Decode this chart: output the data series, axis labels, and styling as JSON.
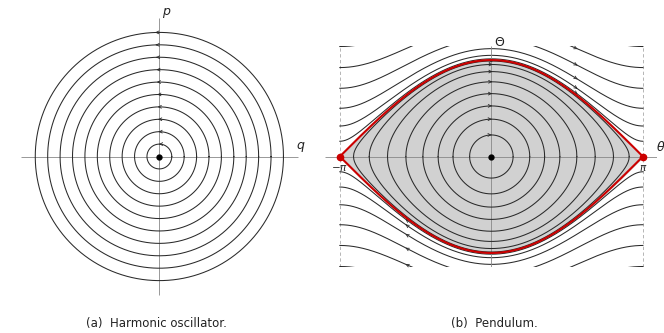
{
  "fig_width": 6.64,
  "fig_height": 3.33,
  "background": "#ffffff",
  "harmonic_radii": [
    0.13,
    0.26,
    0.39,
    0.52,
    0.65,
    0.78,
    0.91,
    1.04,
    1.17,
    1.3
  ],
  "pendulum_inner_energies": [
    -0.9,
    -0.7,
    -0.45,
    -0.15,
    0.2,
    0.55,
    0.82,
    0.96
  ],
  "pendulum_outer_energies": [
    1.05,
    1.2,
    1.5,
    2.0,
    2.7,
    3.6,
    4.7,
    6.0
  ],
  "center_color": "#000000",
  "saddle_color": "#cc0000",
  "separatrix_color": "#cc0000",
  "separatrix_lw": 1.5,
  "orbit_color": "#2a2a2a",
  "orbit_lw": 0.75,
  "axis_color": "#888888",
  "axis_lw": 0.6,
  "caption_a": "(a)  Harmonic oscillator.",
  "caption_b": "(b)  Pendulum.",
  "pi": 3.14159265358979,
  "arrow_mutation_scale": 5
}
